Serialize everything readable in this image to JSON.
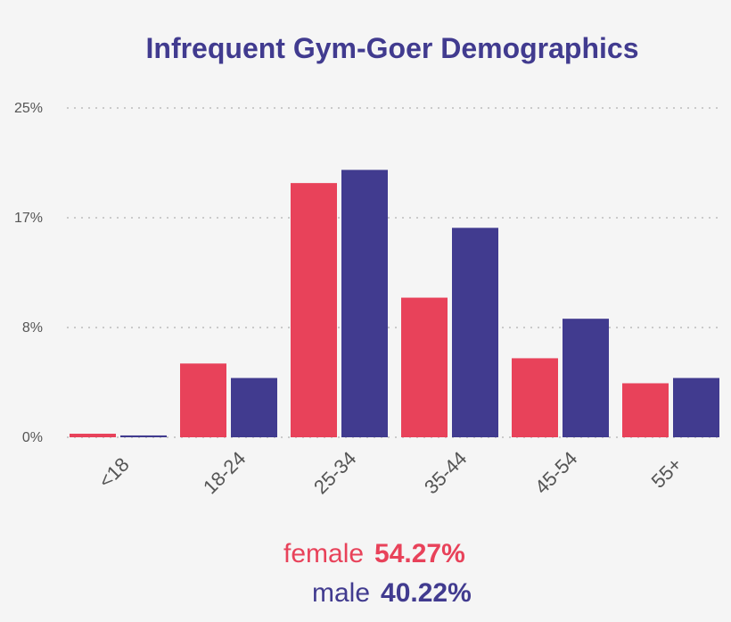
{
  "chart_data": {
    "type": "bar",
    "title": "Infrequent Gym-Goer Demographics",
    "xlabel": "",
    "ylabel": "",
    "categories": [
      "<18",
      "18-24",
      "25-34",
      "35-44",
      "45-54",
      "55+"
    ],
    "series": [
      {
        "name": "female",
        "color": "#e8425a",
        "values": [
          0.27,
          5.6,
          19.3,
          10.6,
          6.0,
          4.1
        ]
      },
      {
        "name": "male",
        "color": "#413b8f",
        "values": [
          0.14,
          4.5,
          20.3,
          15.9,
          9.0,
          4.5
        ]
      }
    ],
    "ylim": [
      0,
      25
    ],
    "yticks": [
      0,
      8.33,
      16.67,
      25
    ],
    "ytick_labels": [
      "0%",
      "8%",
      "17%",
      "25%"
    ],
    "grid": true,
    "legend_placement": "bottom-center"
  },
  "legend": [
    {
      "label": "female",
      "value": "54.27%",
      "color": "#e8425a"
    },
    {
      "label": "male",
      "value": "40.22%",
      "color": "#413b8f"
    }
  ]
}
